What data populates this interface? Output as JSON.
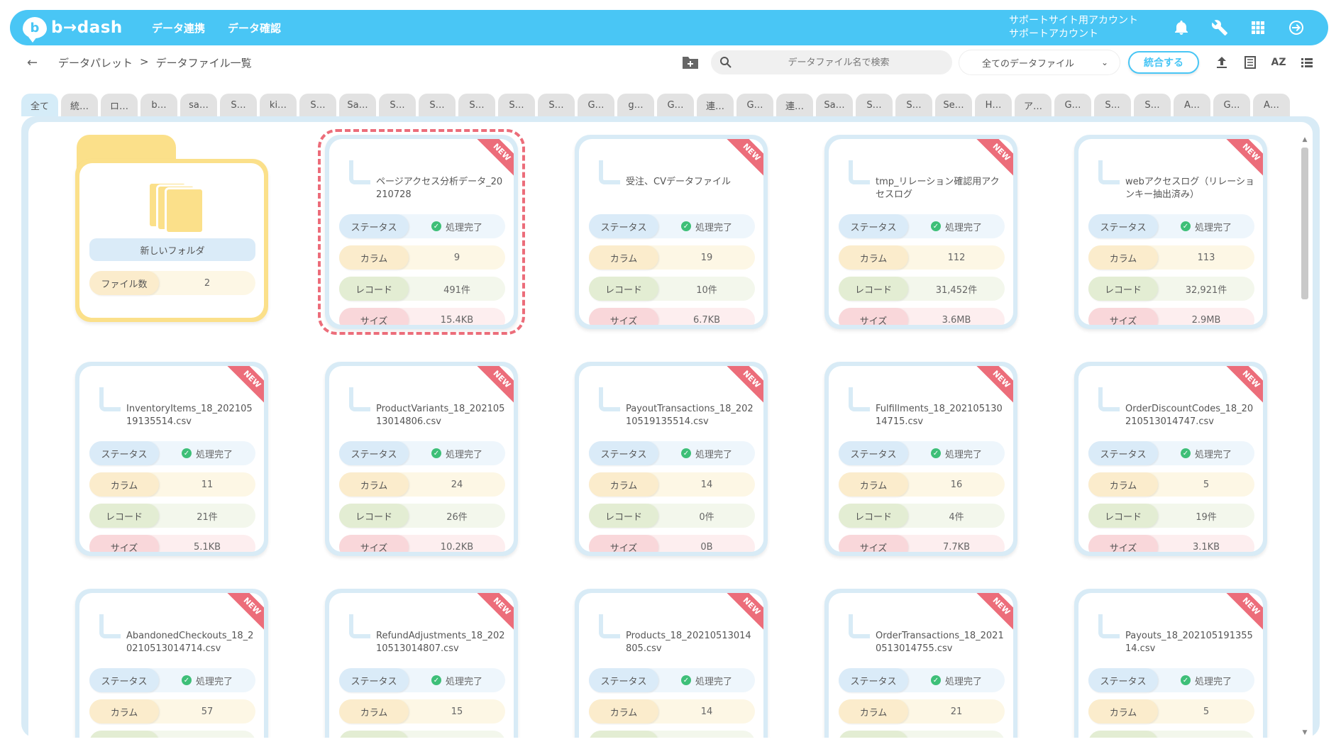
{
  "header": {
    "logo_text": "b→dash",
    "nav": [
      "データ連携",
      "データ確認"
    ],
    "account_line1": "サポートサイト用アカウント",
    "account_line2": "サポートアカウント"
  },
  "toolbar": {
    "breadcrumb": [
      "データパレット",
      ">",
      "データファイル一覧"
    ],
    "search_placeholder": "データファイル名で検索",
    "filter_value": "全てのデータファイル",
    "merge_label": "統合する",
    "sort_label": "AZ"
  },
  "tabs": [
    "全て",
    "統…",
    "ロ…",
    "b…",
    "sa…",
    "S…",
    "ki…",
    "S…",
    "Sa…",
    "S…",
    "S…",
    "S…",
    "S…",
    "S…",
    "G…",
    "g…",
    "G…",
    "連…",
    "G…",
    "連…",
    "Sa…",
    "S…",
    "S…",
    "Se…",
    "H…",
    "ア…",
    "G…",
    "S…",
    "S…",
    "A…",
    "G…",
    "A…"
  ],
  "labels": {
    "status": "ステータス",
    "column": "カラム",
    "record": "レコード",
    "size": "サイズ",
    "file_count": "ファイル数",
    "new_badge": "NEW"
  },
  "folder": {
    "name": "新しいフォルダ",
    "file_count": "2"
  },
  "files": [
    {
      "name": "ページアクセス分析データ_20210728",
      "status": "処理完了",
      "columns": "9",
      "records": "491件",
      "size": "15.4KB"
    },
    {
      "name": "受注、CVデータファイル",
      "status": "処理完了",
      "columns": "19",
      "records": "10件",
      "size": "6.7KB"
    },
    {
      "name": "tmp_リレーション確認用アクセスログ",
      "status": "処理完了",
      "columns": "112",
      "records": "31,452件",
      "size": "3.6MB"
    },
    {
      "name": "webアクセスログ（リレーションキー抽出済み）",
      "status": "処理完了",
      "columns": "113",
      "records": "32,921件",
      "size": "2.9MB"
    },
    {
      "name": "InventoryItems_18_20210519135514.csv",
      "status": "処理完了",
      "columns": "11",
      "records": "21件",
      "size": "5.1KB"
    },
    {
      "name": "ProductVariants_18_20210513014806.csv",
      "status": "処理完了",
      "columns": "24",
      "records": "26件",
      "size": "10.2KB"
    },
    {
      "name": "PayoutTransactions_18_20210519135514.csv",
      "status": "処理完了",
      "columns": "14",
      "records": "0件",
      "size": "0B"
    },
    {
      "name": "Fulfillments_18_20210513014715.csv",
      "status": "処理完了",
      "columns": "16",
      "records": "4件",
      "size": "7.7KB"
    },
    {
      "name": "OrderDiscountCodes_18_20210513014747.csv",
      "status": "処理完了",
      "columns": "5",
      "records": "19件",
      "size": "3.1KB"
    },
    {
      "name": "AbandonedCheckouts_18_20210513014714.csv",
      "status": "処理完了",
      "columns": "57",
      "records": "",
      "size": ""
    },
    {
      "name": "RefundAdjustments_18_20210513014807.csv",
      "status": "処理完了",
      "columns": "15",
      "records": "",
      "size": ""
    },
    {
      "name": "Products_18_20210513014805.csv",
      "status": "処理完了",
      "columns": "14",
      "records": "",
      "size": ""
    },
    {
      "name": "OrderTransactions_18_20210513014755.csv",
      "status": "処理完了",
      "columns": "21",
      "records": "",
      "size": ""
    },
    {
      "name": "Payouts_18_20210519135514.csv",
      "status": "処理完了",
      "columns": "5",
      "records": "",
      "size": ""
    }
  ],
  "colors": {
    "accent": "#49c6f5",
    "new_ribbon": "#ec6d7a",
    "folder": "#fbe08a",
    "success": "#3ebf78"
  },
  "icons": [
    "bell-icon",
    "wrench-icon",
    "apps-grid-icon",
    "logout-icon",
    "folder-add-icon",
    "search-icon",
    "chevron-down-icon",
    "upload-icon",
    "checklist-icon",
    "list-view-icon",
    "back-arrow-icon"
  ]
}
